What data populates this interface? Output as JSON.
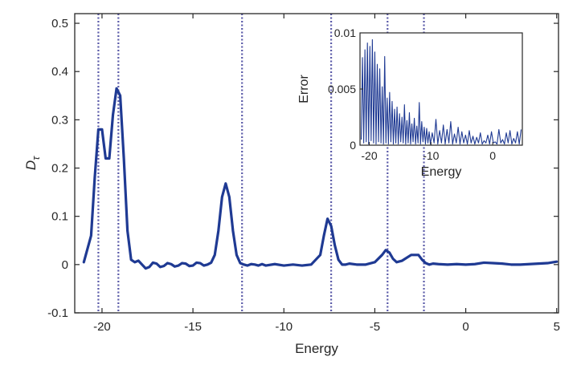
{
  "chart_data": [
    {
      "type": "line",
      "title": "",
      "xlabel": "Energy",
      "ylabel": "D",
      "ylabel_subscript": "τ",
      "xlim": [
        -21.5,
        5.1
      ],
      "ylim": [
        -0.1,
        0.52
      ],
      "xticks": [
        -20,
        -15,
        -10,
        -5,
        0,
        5
      ],
      "xtick_labels": [
        "-20",
        "-15",
        "-10",
        "-5",
        "0",
        "5"
      ],
      "yticks": [
        -0.1,
        0,
        0.1,
        0.2,
        0.3,
        0.4,
        0.5
      ],
      "ytick_labels": [
        "-0.1",
        "0",
        "0.1",
        "0.2",
        "0.3",
        "0.4",
        "0.5"
      ],
      "grid": false,
      "series": [
        {
          "color": "#1f3a93",
          "x": [
            -21.0,
            -20.6,
            -20.4,
            -20.2,
            -20.0,
            -19.8,
            -19.6,
            -19.4,
            -19.2,
            -19.0,
            -18.8,
            -18.6,
            -18.4,
            -18.2,
            -18.0,
            -17.8,
            -17.6,
            -17.4,
            -17.2,
            -17.0,
            -16.8,
            -16.6,
            -16.4,
            -16.2,
            -16.0,
            -15.8,
            -15.6,
            -15.4,
            -15.2,
            -15.0,
            -14.8,
            -14.6,
            -14.4,
            -14.2,
            -14.0,
            -13.8,
            -13.6,
            -13.4,
            -13.2,
            -13.0,
            -12.8,
            -12.6,
            -12.4,
            -12.2,
            -12.0,
            -11.8,
            -11.6,
            -11.4,
            -11.2,
            -11.0,
            -10.5,
            -10.0,
            -9.5,
            -9.0,
            -8.5,
            -8.0,
            -7.8,
            -7.6,
            -7.4,
            -7.2,
            -7.0,
            -6.8,
            -6.6,
            -6.4,
            -6.0,
            -5.5,
            -5.0,
            -4.6,
            -4.4,
            -4.2,
            -4.0,
            -3.8,
            -3.5,
            -3.0,
            -2.6,
            -2.4,
            -2.2,
            -2.0,
            -1.8,
            -1.5,
            -1.0,
            -0.5,
            0.0,
            0.5,
            1.0,
            1.5,
            2.0,
            2.5,
            3.0,
            3.5,
            4.0,
            4.5,
            5.0
          ],
          "y": [
            0.005,
            0.06,
            0.18,
            0.28,
            0.28,
            0.22,
            0.22,
            0.31,
            0.365,
            0.35,
            0.22,
            0.07,
            0.01,
            0.005,
            0.008,
            0.0,
            -0.008,
            -0.005,
            0.004,
            0.002,
            -0.005,
            -0.003,
            0.003,
            0.001,
            -0.004,
            -0.002,
            0.003,
            0.002,
            -0.003,
            -0.002,
            0.004,
            0.003,
            -0.002,
            0.0,
            0.004,
            0.02,
            0.07,
            0.14,
            0.168,
            0.14,
            0.07,
            0.02,
            0.003,
            0.0,
            -0.002,
            0.001,
            0.0,
            -0.002,
            0.001,
            -0.002,
            0.001,
            -0.002,
            0.0,
            -0.002,
            0.0,
            0.02,
            0.06,
            0.095,
            0.08,
            0.04,
            0.01,
            0.0,
            0.0,
            0.002,
            0.0,
            0.0,
            0.005,
            0.02,
            0.03,
            0.025,
            0.012,
            0.005,
            0.008,
            0.02,
            0.02,
            0.01,
            0.003,
            0.0,
            0.002,
            0.001,
            0.0,
            0.001,
            0.0,
            0.001,
            0.004,
            0.003,
            0.002,
            0.0,
            0.0,
            0.001,
            0.002,
            0.003,
            0.006
          ]
        }
      ],
      "reference_lines": {
        "orientation": "vertical",
        "style": "dotted",
        "color": "#5a5aa8",
        "x": [
          -20.2,
          -19.1,
          -12.3,
          -7.4,
          -4.3,
          -2.3
        ]
      }
    },
    {
      "type": "line",
      "title": "",
      "xlabel": "Energy",
      "ylabel": "Error",
      "xlim": [
        -21.5,
        4.8
      ],
      "ylim": [
        0,
        0.01
      ],
      "xticks": [
        -20,
        -10,
        0
      ],
      "xtick_labels": [
        "-20",
        "-10",
        "0"
      ],
      "yticks": [
        0,
        0.005,
        0.01
      ],
      "ytick_labels": [
        "0",
        "0.005",
        "0.01"
      ],
      "grid": false,
      "series": [
        {
          "color": "#1f3a93",
          "x": [
            -21.3,
            -21.1,
            -20.9,
            -20.7,
            -20.5,
            -20.3,
            -20.1,
            -19.9,
            -19.7,
            -19.5,
            -19.3,
            -19.1,
            -18.9,
            -18.7,
            -18.5,
            -18.3,
            -18.1,
            -17.9,
            -17.7,
            -17.5,
            -17.3,
            -17.1,
            -16.9,
            -16.7,
            -16.5,
            -16.3,
            -16.1,
            -15.9,
            -15.7,
            -15.5,
            -15.3,
            -15.1,
            -14.9,
            -14.7,
            -14.5,
            -14.3,
            -14.1,
            -13.9,
            -13.7,
            -13.5,
            -13.3,
            -13.1,
            -12.9,
            -12.7,
            -12.5,
            -12.3,
            -12.1,
            -11.9,
            -11.7,
            -11.5,
            -11.3,
            -11.1,
            -10.9,
            -10.7,
            -10.5,
            -10.3,
            -10.1,
            -9.8,
            -9.5,
            -9.2,
            -8.9,
            -8.6,
            -8.3,
            -8.0,
            -7.7,
            -7.4,
            -7.1,
            -6.8,
            -6.5,
            -6.2,
            -5.9,
            -5.6,
            -5.3,
            -5.0,
            -4.7,
            -4.4,
            -4.1,
            -3.8,
            -3.5,
            -3.2,
            -2.9,
            -2.6,
            -2.3,
            -2.0,
            -1.7,
            -1.4,
            -1.1,
            -0.8,
            -0.5,
            -0.2,
            0.1,
            0.4,
            0.7,
            1.0,
            1.3,
            1.6,
            1.9,
            2.2,
            2.5,
            2.8,
            3.1,
            3.4,
            3.7,
            4.0,
            4.3,
            4.6
          ],
          "y": [
            0.0005,
            0.0078,
            0.0002,
            0.0085,
            0.0003,
            0.0091,
            0.0001,
            0.0088,
            0.0004,
            0.0094,
            0.0002,
            0.0083,
            0.0001,
            0.0072,
            0.0003,
            0.0068,
            0.0002,
            0.0052,
            0.0001,
            0.0079,
            0.0002,
            0.0042,
            0.0001,
            0.0047,
            0.0003,
            0.0039,
            0.0001,
            0.0032,
            0.0002,
            0.0034,
            0.0001,
            0.0028,
            0.0003,
            0.0025,
            0.0002,
            0.0036,
            0.0001,
            0.0022,
            0.0002,
            0.0029,
            0.0001,
            0.0019,
            0.0003,
            0.0024,
            0.0001,
            0.0017,
            0.0002,
            0.0038,
            0.0001,
            0.0021,
            0.0003,
            0.0016,
            0.0001,
            0.0015,
            0.0002,
            0.0012,
            0.0001,
            0.0011,
            0.0002,
            0.0023,
            0.0001,
            0.0013,
            0.0002,
            0.0018,
            0.0001,
            0.0014,
            0.0002,
            0.0021,
            0.0001,
            0.001,
            0.0002,
            0.0016,
            0.0001,
            0.0012,
            0.0002,
            0.0009,
            0.0001,
            0.0013,
            0.0002,
            0.0008,
            0.0001,
            0.0007,
            0.0002,
            0.0011,
            0.0001,
            0.0004,
            0.0002,
            0.0009,
            0.0001,
            0.0012,
            0.0002,
            0.0003,
            0.0001,
            0.0014,
            0.0002,
            0.0005,
            0.0001,
            0.0011,
            0.0002,
            0.0013,
            0.0001,
            0.0006,
            0.0002,
            0.0012,
            0.0001,
            0.0014
          ]
        }
      ]
    }
  ]
}
